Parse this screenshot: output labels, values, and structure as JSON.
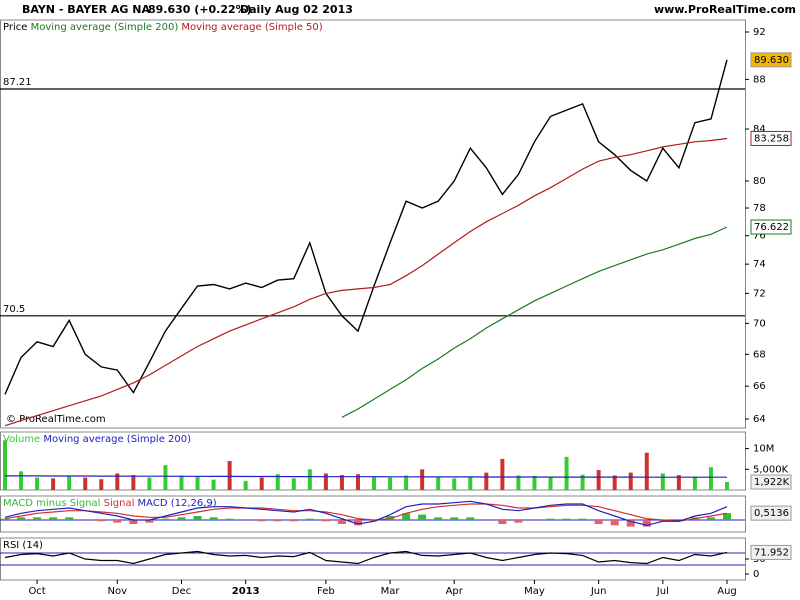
{
  "header": {
    "symbol": "BAYN - BAYER AG  NA",
    "quote": "89.630 (+0.22%)",
    "period": "Daily  Aug 02 2013",
    "source": "www.ProRealTime.com",
    "watermark": "© ProRealTime.com"
  },
  "chart_data": [
    {
      "type": "line",
      "legend_prefix": "Price",
      "log_scale": true,
      "categories": [
        null,
        null,
        "Oct",
        null,
        null,
        null,
        null,
        "Nov",
        null,
        null,
        null,
        "Dec",
        null,
        null,
        null,
        "2013",
        null,
        null,
        null,
        null,
        "Feb",
        null,
        null,
        null,
        "Mar",
        null,
        null,
        null,
        "Apr",
        null,
        null,
        null,
        null,
        "May",
        null,
        null,
        null,
        "Jun",
        null,
        null,
        null,
        "Jul",
        null,
        null,
        null,
        "Aug"
      ],
      "ylim": [
        63.46,
        93.04
      ],
      "yticks": [
        64,
        66,
        68,
        70,
        72,
        74,
        76,
        78,
        80,
        84,
        88,
        92
      ],
      "levels": [
        {
          "value": 87.21,
          "label": "87.21"
        },
        {
          "value": 70.5,
          "label": "70.5"
        }
      ],
      "series": [
        {
          "name": "Price",
          "color": "#000000",
          "values": [
            65.5,
            67.8,
            68.8,
            68.5,
            70.2,
            68.0,
            67.2,
            67.0,
            65.6,
            67.5,
            69.5,
            71.0,
            72.5,
            72.6,
            72.3,
            72.7,
            72.4,
            72.9,
            73.0,
            75.5,
            72.0,
            70.5,
            69.5,
            72.5,
            75.5,
            78.5,
            78.0,
            78.5,
            80.0,
            82.5,
            81.0,
            79.0,
            80.5,
            83.0,
            85.0,
            85.5,
            86.0,
            83.0,
            82.0,
            80.8,
            80.0,
            82.5,
            81.0,
            84.5,
            84.8,
            89.63
          ],
          "last_label": "89.630"
        },
        {
          "name": "Moving average (Simple 200)",
          "color": "#1d7a1d",
          "values": [
            null,
            null,
            null,
            null,
            null,
            null,
            null,
            null,
            null,
            null,
            null,
            null,
            null,
            null,
            null,
            null,
            null,
            null,
            null,
            null,
            null,
            64.1,
            64.6,
            65.2,
            65.8,
            66.4,
            67.1,
            67.7,
            68.4,
            69.0,
            69.7,
            70.3,
            70.9,
            71.5,
            72.0,
            72.5,
            73.0,
            73.5,
            73.9,
            74.3,
            74.7,
            75.0,
            75.4,
            75.8,
            76.1,
            76.622
          ],
          "last_label": "76.622"
        },
        {
          "name": "Moving average (Simple 50)",
          "color": "#b01c1c",
          "values": [
            63.6,
            63.9,
            64.2,
            64.5,
            64.8,
            65.1,
            65.4,
            65.8,
            66.2,
            66.7,
            67.3,
            67.9,
            68.5,
            69.0,
            69.5,
            69.9,
            70.3,
            70.7,
            71.1,
            71.6,
            72.0,
            72.2,
            72.3,
            72.4,
            72.6,
            73.2,
            73.9,
            74.7,
            75.5,
            76.3,
            77.0,
            77.6,
            78.2,
            78.9,
            79.5,
            80.2,
            80.9,
            81.5,
            81.8,
            82.0,
            82.3,
            82.6,
            82.8,
            83.0,
            83.1,
            83.258
          ],
          "last_label": "83.258"
        }
      ]
    },
    {
      "type": "bar",
      "ylim": [
        0,
        14000000
      ],
      "yticks": [
        {
          "value": 10000000,
          "label": "10M"
        },
        {
          "value": 5000000,
          "label": "5,000K"
        }
      ],
      "series": [
        {
          "name": "Volume",
          "up_color": "#33cc33",
          "down_color": "#d03030",
          "values": [
            12000000,
            4500000,
            3000000,
            2800000,
            3500000,
            3000000,
            2600000,
            4000000,
            3600000,
            3000000,
            6000000,
            3500000,
            3200000,
            2500000,
            7000000,
            2200000,
            3000000,
            3800000,
            2800000,
            5000000,
            4000000,
            3600000,
            3800000,
            3200000,
            3000000,
            3500000,
            5000000,
            3000000,
            2800000,
            3200000,
            4200000,
            7500000,
            3500000,
            3400000,
            3000000,
            8000000,
            3700000,
            4800000,
            3500000,
            4200000,
            9000000,
            4000000,
            3600000,
            3200000,
            5500000,
            1922000
          ],
          "last_label": "1,922K"
        },
        {
          "name": "Moving average (Simple 200)",
          "color": "#2020c0",
          "values": [
            3400000,
            3400000,
            3400000,
            3390000,
            3380000,
            3370000,
            3360000,
            3350000,
            3340000,
            3330000,
            3320000,
            3310000,
            3300000,
            3290000,
            3280000,
            3270000,
            3260000,
            3250000,
            3240000,
            3230000,
            3220000,
            3210000,
            3200000,
            3200000,
            3190000,
            3180000,
            3170000,
            3160000,
            3150000,
            3150000,
            3140000,
            3140000,
            3130000,
            3130000,
            3120000,
            3120000,
            3120000,
            3110000,
            3110000,
            3110000,
            3100000,
            3100000,
            3100000,
            3100000,
            3100000,
            3100000
          ]
        }
      ]
    },
    {
      "type": "macd",
      "ylim": [
        -0.9,
        1.8
      ],
      "series": [
        {
          "name": "MACD minus Signal",
          "up_color": "#33bb33",
          "down_color": "#e06070",
          "values": [
            0.1,
            0.2,
            0.2,
            0.2,
            0.2,
            0,
            -0.1,
            -0.2,
            -0.3,
            -0.2,
            0.1,
            0.2,
            0.3,
            0.2,
            0.1,
            0,
            -0.1,
            -0.1,
            -0.1,
            0.1,
            -0.1,
            -0.3,
            -0.4,
            -0.1,
            0.3,
            0.5,
            0.4,
            0.2,
            0.2,
            0.2,
            0,
            -0.3,
            -0.2,
            0,
            0.1,
            0.1,
            0.1,
            -0.3,
            -0.4,
            -0.5,
            -0.5,
            -0.1,
            0,
            0.2,
            0.2,
            0.5136
          ],
          "last_label": "0,5136"
        },
        {
          "name": "Signal",
          "color": "#d03030",
          "values": [
            0.1,
            0.3,
            0.5,
            0.6,
            0.7,
            0.7,
            0.6,
            0.5,
            0.3,
            0.2,
            0.2,
            0.4,
            0.6,
            0.8,
            0.9,
            0.9,
            0.9,
            0.8,
            0.7,
            0.7,
            0.6,
            0.4,
            0.1,
            0.0,
            0.1,
            0.5,
            0.8,
            1.0,
            1.1,
            1.2,
            1.2,
            1.1,
            0.9,
            0.9,
            1.0,
            1.1,
            1.1,
            1.0,
            0.7,
            0.4,
            0.1,
            0.0,
            -0.1,
            0.1,
            0.3,
            0.5
          ]
        },
        {
          "name": "MACD (12,26,9)",
          "color": "#2020c0",
          "values": [
            0.2,
            0.5,
            0.7,
            0.8,
            0.9,
            0.7,
            0.5,
            0.3,
            0.0,
            0.0,
            0.3,
            0.6,
            0.9,
            1.0,
            1.0,
            0.9,
            0.8,
            0.7,
            0.6,
            0.8,
            0.5,
            0.1,
            -0.3,
            -0.1,
            0.4,
            1.0,
            1.2,
            1.2,
            1.3,
            1.4,
            1.2,
            0.8,
            0.7,
            0.9,
            1.1,
            1.2,
            1.2,
            0.7,
            0.3,
            -0.1,
            -0.4,
            -0.1,
            -0.1,
            0.3,
            0.5,
            1.0
          ]
        }
      ]
    },
    {
      "type": "line",
      "ylim": [
        -20,
        120
      ],
      "yticks": [
        0,
        50
      ],
      "levels": [
        70,
        30
      ],
      "series": [
        {
          "name": "RSI (14)",
          "color": "#000000",
          "values": [
            55,
            65,
            68,
            60,
            70,
            50,
            45,
            45,
            35,
            50,
            65,
            70,
            75,
            65,
            60,
            62,
            55,
            60,
            58,
            72,
            45,
            40,
            35,
            55,
            70,
            75,
            62,
            60,
            65,
            70,
            55,
            45,
            55,
            65,
            70,
            68,
            62,
            40,
            45,
            38,
            35,
            55,
            45,
            65,
            60,
            71.952
          ],
          "last_label": "71.952"
        }
      ]
    }
  ]
}
